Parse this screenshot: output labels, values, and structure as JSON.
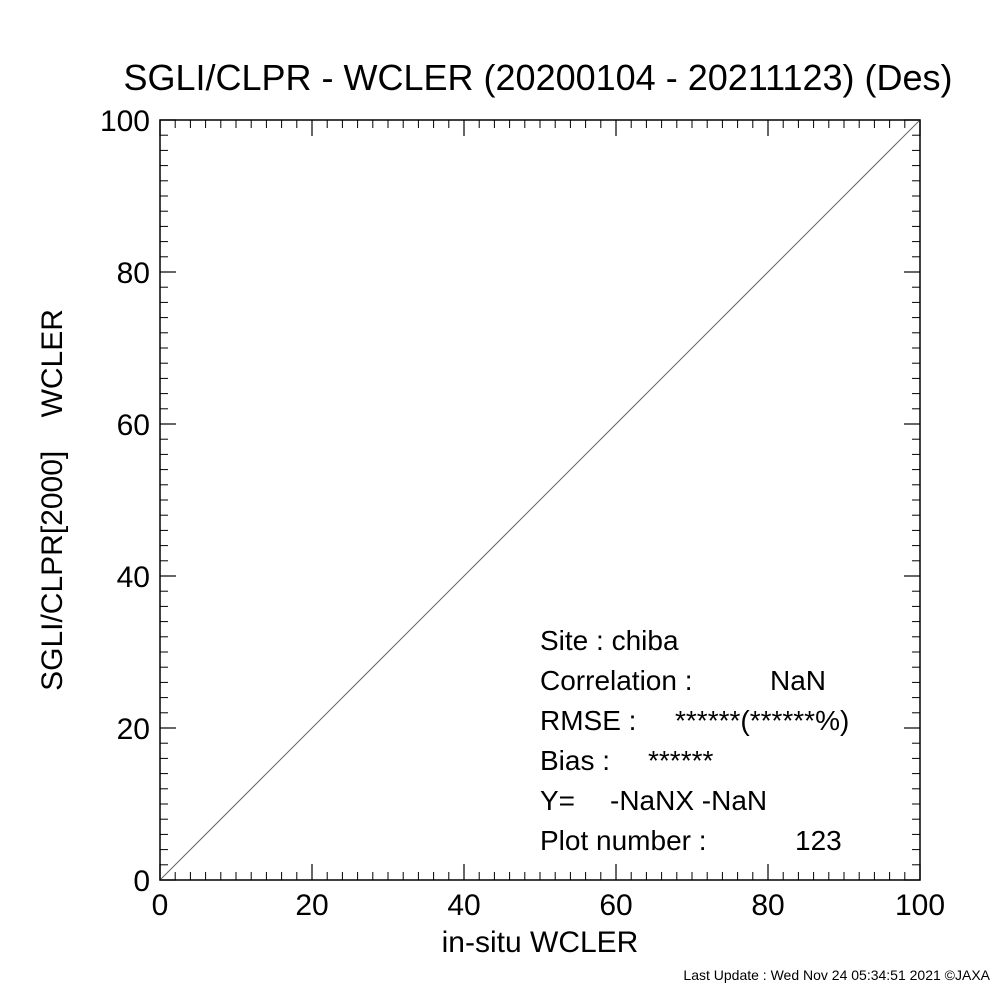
{
  "chart_data": {
    "type": "scatter",
    "title": "SGLI/CLPR - WCLER (20200104 - 20211123) (Des)",
    "xlabel": "in-situ WCLER",
    "ylabel": "SGLI/CLPR[2000]    WCLER",
    "xlim": [
      0,
      100
    ],
    "ylim": [
      0,
      100
    ],
    "x_ticks": [
      "0",
      "20",
      "40",
      "60",
      "80",
      "100"
    ],
    "y_ticks": [
      "0",
      "20",
      "40",
      "60",
      "80",
      "100"
    ],
    "x_tick_values": [
      0,
      20,
      40,
      60,
      80,
      100
    ],
    "y_tick_values": [
      0,
      20,
      40,
      60,
      80,
      100
    ],
    "reference_line": {
      "x": [
        0,
        100
      ],
      "y": [
        0,
        100
      ]
    },
    "points": [],
    "grid": false,
    "stats": [
      {
        "label": "Site : chiba",
        "value": ""
      },
      {
        "label": "Correlation :",
        "value": "NaN"
      },
      {
        "label": "RMSE :",
        "value": "******(******%)"
      },
      {
        "label": "Bias :",
        "value": "******"
      },
      {
        "label": "Y=",
        "value": "-NaNX   -NaN"
      },
      {
        "label": "Plot number :",
        "value": "123"
      }
    ]
  },
  "footer": "Last Update : Wed Nov 24 05:34:51 2021  ©JAXA"
}
